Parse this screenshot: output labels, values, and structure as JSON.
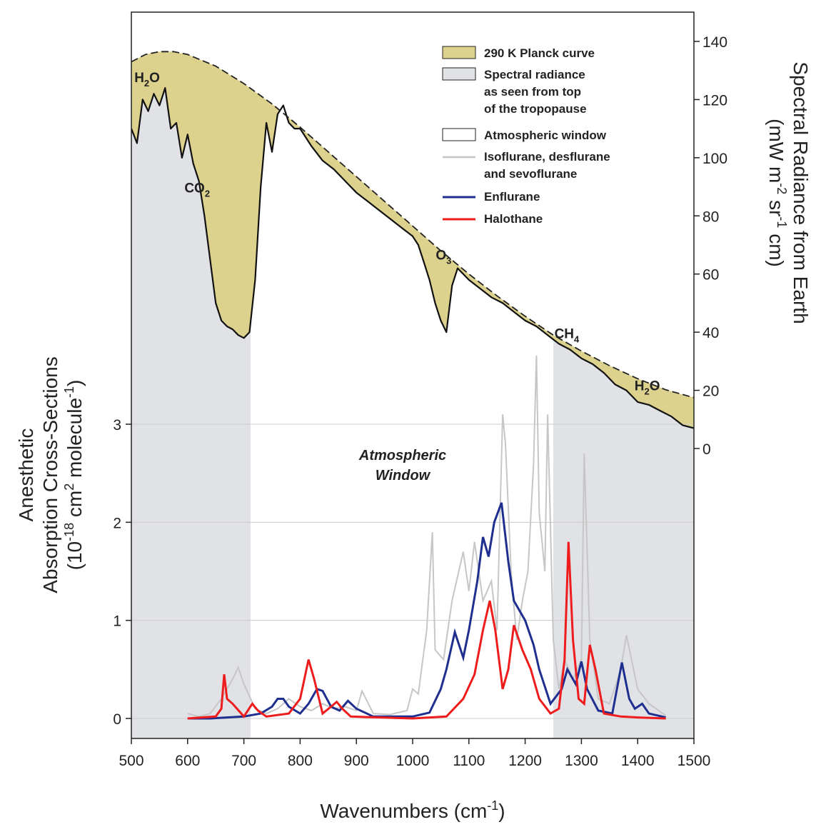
{
  "chart_data": {
    "type": "line",
    "xlabel": "Wavenumbers (cm-1)",
    "xlabel_parts": [
      "Wavenumbers (cm",
      "-1",
      ")"
    ],
    "xlim": [
      500,
      1500
    ],
    "xticks": [
      500,
      600,
      700,
      800,
      900,
      1000,
      1100,
      1200,
      1300,
      1400,
      1500
    ],
    "left_axis": {
      "title_lines": [
        "Anesthetic",
        "Absorption Cross-Sections"
      ],
      "title_line3_parts": [
        "(10",
        "-18",
        " cm",
        "2",
        " molecule",
        "-1",
        ")"
      ],
      "ylim": [
        -0.2,
        5.3
      ],
      "ticks": [
        0,
        1,
        2,
        3
      ]
    },
    "right_axis": {
      "title_line1": "Spectral Radiance from Earth",
      "title_line2_parts": [
        "(mW m",
        "-2",
        " sr",
        "-1",
        " cm)"
      ],
      "ylim": [
        0,
        140
      ],
      "ticks": [
        0,
        20,
        40,
        60,
        80,
        100,
        120,
        140
      ]
    },
    "atmospheric_window_range": [
      712,
      1250
    ],
    "window_label_lines": [
      "Atmospheric",
      "Window"
    ],
    "legend": {
      "planck": "290 K Planck curve",
      "spectral_lines": [
        "Spectral radiance",
        "as seen from top",
        "of the tropopause"
      ],
      "window": "Atmospheric window",
      "iso_lines": [
        "Isoflurane, desflurane",
        "and sevoflurane"
      ],
      "enflurane": "Enflurane",
      "halothane": "Halothane",
      "placement": "top-right"
    },
    "molecule_labels": [
      {
        "main": "H",
        "sub": "2",
        "tail": "O"
      },
      {
        "main": "CO",
        "sub": "2",
        "tail": ""
      },
      {
        "main": "O",
        "sub": "3",
        "tail": ""
      },
      {
        "main": "CH",
        "sub": "4",
        "tail": ""
      },
      {
        "main": "H",
        "sub": "2",
        "tail": "O"
      }
    ],
    "series": [
      {
        "name": "290 K Planck curve",
        "axis": "right",
        "x": [
          500,
          525,
          550,
          575,
          600,
          650,
          700,
          750,
          800,
          850,
          900,
          950,
          1000,
          1050,
          1100,
          1150,
          1200,
          1250,
          1300,
          1350,
          1400,
          1450,
          1500
        ],
        "y": [
          133,
          135.5,
          136.5,
          136.5,
          135.5,
          131.5,
          125.5,
          118.5,
          110.5,
          102,
          93.5,
          85,
          76.5,
          68,
          60,
          52.5,
          45.5,
          39,
          33.5,
          28.5,
          24,
          20.2,
          17.5
        ]
      },
      {
        "name": "Spectral radiance as seen from top of the tropopause",
        "axis": "right",
        "x": [
          500,
          510,
          520,
          530,
          540,
          550,
          560,
          570,
          580,
          590,
          600,
          610,
          620,
          630,
          640,
          650,
          660,
          670,
          680,
          690,
          700,
          710,
          720,
          730,
          740,
          750,
          760,
          770,
          780,
          790,
          800,
          820,
          840,
          860,
          880,
          900,
          920,
          940,
          960,
          980,
          1000,
          1010,
          1020,
          1030,
          1040,
          1050,
          1060,
          1070,
          1080,
          1100,
          1120,
          1140,
          1160,
          1180,
          1200,
          1220,
          1240,
          1260,
          1280,
          1300,
          1320,
          1340,
          1360,
          1380,
          1400,
          1420,
          1440,
          1460,
          1480,
          1500
        ],
        "y": [
          110,
          105,
          120,
          116,
          122,
          118,
          124,
          110,
          112,
          100,
          108,
          98,
          92,
          80,
          65,
          50,
          44,
          42,
          41,
          39,
          38,
          40,
          58,
          90,
          112,
          102,
          115,
          118,
          112,
          110,
          110,
          104,
          99,
          96,
          92,
          88,
          85,
          82,
          79,
          76,
          73,
          70,
          64,
          58,
          50,
          44,
          40,
          56,
          62,
          58,
          55,
          52,
          50,
          47,
          44,
          42,
          39,
          36,
          34,
          31,
          29,
          26,
          22,
          20,
          16,
          15,
          13,
          11,
          8,
          7
        ]
      },
      {
        "name": "Isoflurane, desflurane and sevoflurane",
        "axis": "left",
        "x": [
          600,
          620,
          640,
          660,
          680,
          690,
          700,
          720,
          740,
          760,
          780,
          800,
          820,
          840,
          860,
          880,
          900,
          910,
          930,
          960,
          990,
          1000,
          1010,
          1025,
          1035,
          1040,
          1055,
          1070,
          1090,
          1100,
          1110,
          1125,
          1140,
          1150,
          1160,
          1165,
          1175,
          1185,
          1195,
          1205,
          1215,
          1220,
          1225,
          1235,
          1240,
          1250,
          1260,
          1270,
          1285,
          1300,
          1305,
          1315,
          1330,
          1350,
          1370,
          1380,
          1400,
          1420,
          1450
        ],
        "y": [
          0.05,
          0.02,
          0.05,
          0.2,
          0.4,
          0.52,
          0.35,
          0.1,
          0.05,
          0.1,
          0.2,
          0.12,
          0.08,
          0.15,
          0.1,
          0.12,
          0.08,
          0.28,
          0.05,
          0.04,
          0.08,
          0.3,
          0.25,
          0.9,
          1.9,
          0.7,
          0.6,
          1.2,
          1.7,
          1.3,
          1.8,
          1.2,
          1.4,
          0.9,
          3.1,
          2.8,
          1.5,
          0.8,
          1.2,
          1.5,
          2.6,
          3.7,
          2.1,
          1.5,
          3.1,
          0.8,
          0.3,
          0.6,
          0.4,
          0.6,
          2.7,
          0.8,
          0.2,
          0.15,
          0.5,
          0.85,
          0.3,
          0.15,
          0.03
        ]
      },
      {
        "name": "Enflurane",
        "axis": "left",
        "x": [
          600,
          640,
          700,
          730,
          750,
          760,
          770,
          780,
          800,
          815,
          830,
          840,
          855,
          870,
          885,
          900,
          930,
          1000,
          1030,
          1050,
          1060,
          1075,
          1090,
          1100,
          1115,
          1125,
          1135,
          1145,
          1158,
          1170,
          1180,
          1200,
          1215,
          1225,
          1245,
          1265,
          1275,
          1290,
          1300,
          1310,
          1330,
          1355,
          1372,
          1385,
          1395,
          1408,
          1420,
          1450
        ],
        "y": [
          0.0,
          0.0,
          0.02,
          0.05,
          0.12,
          0.2,
          0.2,
          0.12,
          0.05,
          0.15,
          0.3,
          0.28,
          0.12,
          0.08,
          0.18,
          0.1,
          0.02,
          0.02,
          0.06,
          0.3,
          0.5,
          0.88,
          0.62,
          0.9,
          1.4,
          1.85,
          1.65,
          2.0,
          2.2,
          1.6,
          1.2,
          1.0,
          0.75,
          0.5,
          0.15,
          0.3,
          0.5,
          0.35,
          0.58,
          0.3,
          0.08,
          0.05,
          0.57,
          0.2,
          0.1,
          0.15,
          0.05,
          0.01
        ]
      },
      {
        "name": "Halothane",
        "axis": "left",
        "x": [
          600,
          650,
          660,
          665,
          670,
          680,
          700,
          715,
          725,
          740,
          780,
          800,
          815,
          825,
          840,
          855,
          865,
          875,
          890,
          1000,
          1060,
          1090,
          1110,
          1125,
          1137,
          1147,
          1160,
          1170,
          1180,
          1195,
          1210,
          1225,
          1245,
          1260,
          1270,
          1277,
          1285,
          1295,
          1305,
          1315,
          1325,
          1340,
          1370,
          1400,
          1450
        ],
        "y": [
          0.0,
          0.02,
          0.1,
          0.45,
          0.2,
          0.15,
          0.02,
          0.15,
          0.08,
          0.02,
          0.05,
          0.2,
          0.6,
          0.4,
          0.05,
          0.12,
          0.17,
          0.1,
          0.02,
          0.0,
          0.02,
          0.2,
          0.45,
          0.9,
          1.2,
          0.9,
          0.3,
          0.5,
          0.95,
          0.7,
          0.5,
          0.2,
          0.05,
          0.1,
          0.6,
          1.8,
          0.8,
          0.2,
          0.15,
          0.75,
          0.5,
          0.05,
          0.02,
          0.01,
          0.0
        ]
      }
    ]
  },
  "colors": {
    "planck_fill": "#ddd18e",
    "planck_line": "#222222",
    "spectral_fill": "#e1e2e6",
    "spectral_line": "#111111",
    "iso": "#c6c6c6",
    "enflurane": "#1f2f8f",
    "halothane": "#ee1c1c",
    "grid": "#cccccc"
  }
}
